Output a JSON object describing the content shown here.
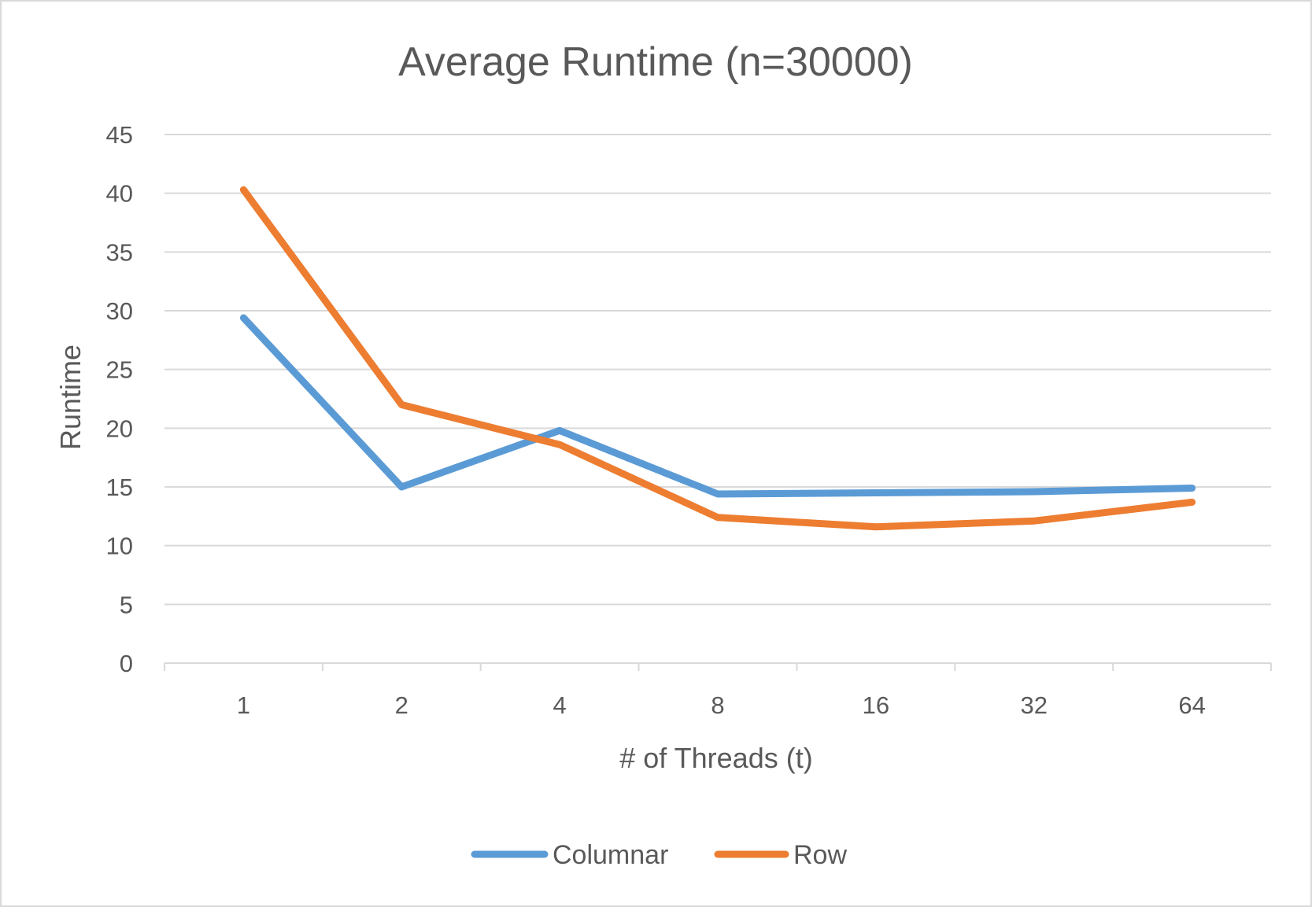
{
  "chart_data": {
    "type": "line",
    "title": "Average Runtime (n=30000)",
    "xlabel": "# of Threads (t)",
    "ylabel": "Runtime",
    "categories": [
      "1",
      "2",
      "4",
      "8",
      "16",
      "32",
      "64"
    ],
    "ylim": [
      0,
      45
    ],
    "yticks": [
      "0",
      "5",
      "10",
      "15",
      "20",
      "25",
      "30",
      "35",
      "40",
      "45"
    ],
    "grid": true,
    "legend_position": "bottom",
    "series": [
      {
        "name": "Columnar",
        "color": "#5b9bd5",
        "values": [
          29.4,
          15.0,
          19.8,
          14.4,
          14.5,
          14.6,
          14.9
        ]
      },
      {
        "name": "Row",
        "color": "#ed7d31",
        "values": [
          40.3,
          22.0,
          18.6,
          12.4,
          11.6,
          12.1,
          13.7
        ]
      }
    ]
  }
}
